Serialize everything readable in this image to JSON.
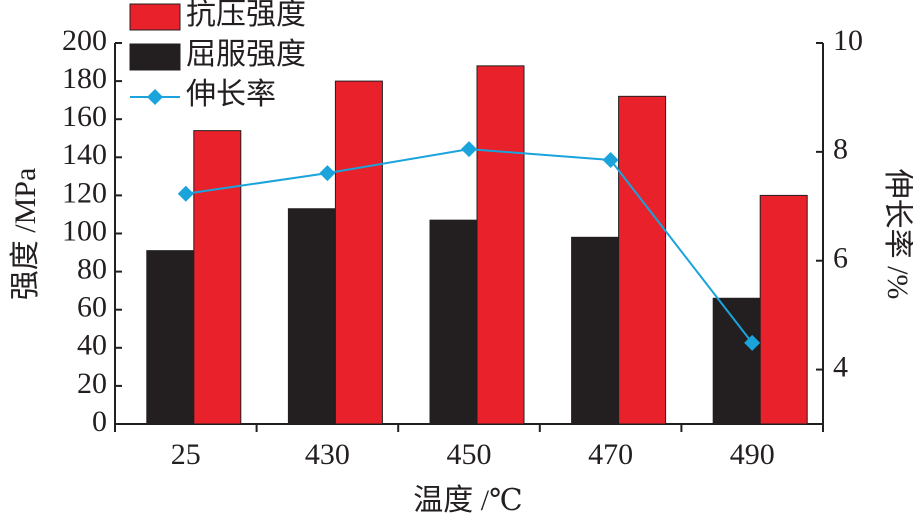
{
  "chart_data": {
    "type": "bar",
    "x_label": "温度 /℃",
    "y_label": "强度 /MPa",
    "y2_label": "伸长率 /%",
    "categories": [
      "25",
      "430",
      "450",
      "470",
      "490"
    ],
    "series": [
      {
        "name": "抗压强度",
        "type": "bar",
        "color": "#e8212a",
        "values": [
          154,
          180,
          188,
          172,
          120
        ]
      },
      {
        "name": "屈服强度",
        "type": "bar",
        "color": "#231f20",
        "values": [
          91,
          113,
          107,
          98,
          66
        ]
      },
      {
        "name": "伸长率",
        "type": "line",
        "axis": "y2",
        "color": "#1ba3dc",
        "values": [
          7.23,
          7.61,
          8.05,
          7.85,
          4.49
        ]
      }
    ],
    "ylim": [
      0,
      200
    ],
    "yticks": [
      0,
      20,
      40,
      60,
      80,
      100,
      120,
      140,
      160,
      180,
      200
    ],
    "y2lim": [
      3,
      10
    ],
    "y2ticks": [
      4,
      6,
      8,
      10
    ]
  }
}
